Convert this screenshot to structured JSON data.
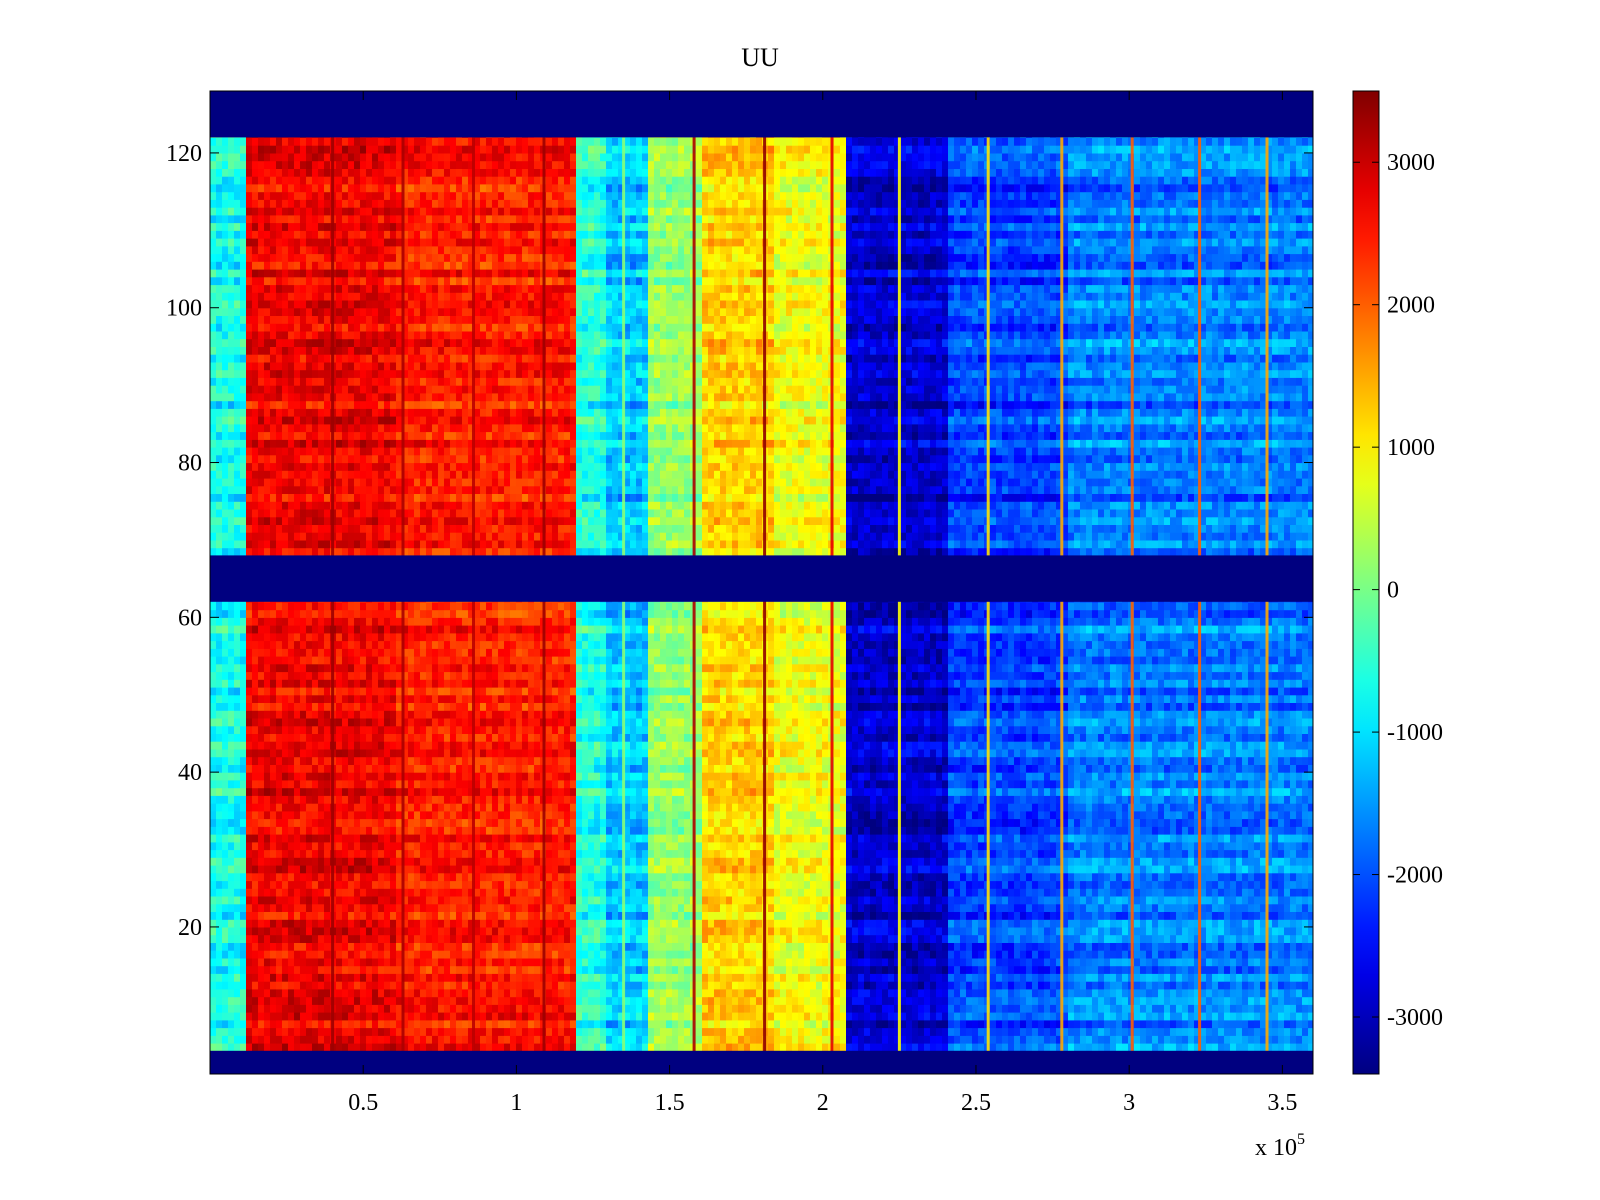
{
  "chart_data": {
    "type": "heatmap",
    "title": "UU",
    "xlabel": "",
    "ylabel": "",
    "x_multiplier_label": "x 10",
    "x_multiplier_exponent": "5",
    "xlim": [
      0,
      3.6
    ],
    "ylim": [
      1,
      128
    ],
    "x_ticks": [
      0.5,
      1,
      1.5,
      2,
      2.5,
      3,
      3.5
    ],
    "x_tick_labels": [
      "0.5",
      "1",
      "1.5",
      "2",
      "2.5",
      "3",
      "3.5"
    ],
    "y_ticks": [
      20,
      40,
      60,
      80,
      100,
      120
    ],
    "y_tick_labels": [
      "20",
      "40",
      "60",
      "80",
      "100",
      "120"
    ],
    "colormap": "jet",
    "clim": [
      -3400,
      3500
    ],
    "colorbar_ticks": [
      3000,
      2000,
      1000,
      0,
      -1000,
      -2000,
      -3000
    ],
    "colorbar_tick_labels": [
      "3000",
      "2000",
      "1000",
      "0",
      "-1000",
      "-2000",
      "-3000"
    ],
    "empty_row_bands": [
      [
        1,
        4
      ],
      [
        62,
        68
      ],
      [
        122,
        128
      ]
    ],
    "column_segments": [
      {
        "x_start": 0.0,
        "x_end": 0.12,
        "value": -700
      },
      {
        "x_start": 0.12,
        "x_end": 0.6,
        "value": 2700
      },
      {
        "x_start": 0.6,
        "x_end": 1.2,
        "value": 2450
      },
      {
        "x_start": 1.2,
        "x_end": 1.3,
        "value": -600
      },
      {
        "x_start": 1.3,
        "x_end": 1.42,
        "value": -1200
      },
      {
        "x_start": 1.42,
        "x_end": 1.6,
        "value": 200
      },
      {
        "x_start": 1.6,
        "x_end": 1.85,
        "value": 1200
      },
      {
        "x_start": 1.85,
        "x_end": 2.07,
        "value": 800
      },
      {
        "x_start": 2.07,
        "x_end": 2.4,
        "value": -2900
      },
      {
        "x_start": 2.4,
        "x_end": 2.8,
        "value": -2100
      },
      {
        "x_start": 2.8,
        "x_end": 3.6,
        "value": -1700
      }
    ],
    "vertical_streaks": [
      {
        "x": 0.4,
        "value": 3300
      },
      {
        "x": 0.63,
        "value": 3200
      },
      {
        "x": 0.86,
        "value": 3100
      },
      {
        "x": 1.09,
        "value": 3300
      },
      {
        "x": 1.35,
        "value": 100
      },
      {
        "x": 1.58,
        "value": 3200
      },
      {
        "x": 1.81,
        "value": 3400
      },
      {
        "x": 2.03,
        "value": 2800
      },
      {
        "x": 2.25,
        "value": 900
      },
      {
        "x": 2.54,
        "value": 1100
      },
      {
        "x": 2.78,
        "value": 1500
      },
      {
        "x": 3.01,
        "value": 2000
      },
      {
        "x": 3.23,
        "value": 2000
      },
      {
        "x": 3.45,
        "value": 1500
      }
    ]
  }
}
